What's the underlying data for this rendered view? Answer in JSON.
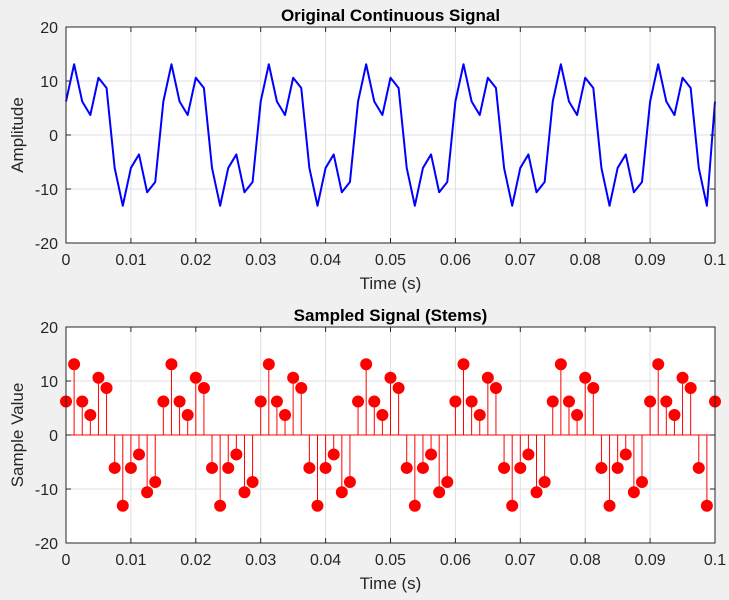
{
  "chart_data": [
    {
      "type": "line",
      "title": "Original Continuous Signal",
      "xlabel": "Time (s)",
      "ylabel": "Amplitude",
      "xlim": [
        0,
        0.1
      ],
      "ylim": [
        -20,
        20
      ],
      "xticks": [
        0,
        0.01,
        0.02,
        0.03,
        0.04,
        0.05,
        0.06,
        0.07,
        0.08,
        0.09,
        0.1
      ],
      "xtick_labels": [
        "0",
        "0.01",
        "0.02",
        "0.03",
        "0.04",
        "0.05",
        "0.06",
        "0.07",
        "0.08",
        "0.09",
        "0.1"
      ],
      "yticks": [
        -20,
        -10,
        0,
        10,
        20
      ],
      "ytick_labels": [
        "-20",
        "-10",
        "0",
        "10",
        "20"
      ],
      "grid": true,
      "color": "#0000ff",
      "series": [
        {
          "x": [
            0,
            0.00125,
            0.0025,
            0.00375,
            0.005,
            0.00625,
            0.0075,
            0.00875,
            0.01,
            0.01125,
            0.0125,
            0.01375,
            0.015,
            0.01625,
            0.0175,
            0.01875,
            0.02,
            0.02125,
            0.0225,
            0.02375,
            0.025,
            0.02625,
            0.0275,
            0.02875,
            0.03,
            0.03125,
            0.0325,
            0.03375,
            0.035,
            0.03625,
            0.0375,
            0.03875,
            0.04,
            0.04125,
            0.0425,
            0.04375,
            0.045,
            0.04625,
            0.0475,
            0.04875,
            0.05,
            0.05125,
            0.0525,
            0.05375,
            0.055,
            0.05625,
            0.0575,
            0.05875,
            0.06,
            0.06125,
            0.0625,
            0.06375,
            0.065,
            0.06625,
            0.0675,
            0.06875,
            0.07,
            0.07125,
            0.0725,
            0.07375,
            0.075,
            0.07625,
            0.0775,
            0.07875,
            0.08,
            0.08125,
            0.0825,
            0.08375,
            0.085,
            0.08625,
            0.0875,
            0.08875,
            0.09,
            0.09125,
            0.0925,
            0.09375,
            0.095,
            0.09625,
            0.0975,
            0.09875,
            0.1
          ],
          "y": [
            6.2,
            13.1,
            6.2,
            3.7,
            10.6,
            8.7,
            -6.1,
            -13.1,
            -6.1,
            -3.6,
            -10.6,
            -8.7,
            6.2,
            13.1,
            6.2,
            3.7,
            10.6,
            8.7,
            -6.1,
            -13.1,
            -6.1,
            -3.6,
            -10.6,
            -8.7,
            6.2,
            13.1,
            6.2,
            3.7,
            10.6,
            8.7,
            -6.1,
            -13.1,
            -6.1,
            -3.6,
            -10.6,
            -8.7,
            6.2,
            13.1,
            6.2,
            3.7,
            10.6,
            8.7,
            -6.1,
            -13.1,
            -6.1,
            -3.6,
            -10.6,
            -8.7,
            6.2,
            13.1,
            6.2,
            3.7,
            10.6,
            8.7,
            -6.1,
            -13.1,
            -6.1,
            -3.6,
            -10.6,
            -8.7,
            6.2,
            13.1,
            6.2,
            3.7,
            10.6,
            8.7,
            -6.1,
            -13.1,
            -6.1,
            -3.6,
            -10.6,
            -8.7,
            6.2,
            13.1,
            6.2,
            3.7,
            10.6,
            8.7,
            -6.1,
            -13.1,
            6.2
          ]
        }
      ]
    },
    {
      "type": "stem",
      "title": "Sampled Signal (Stems)",
      "xlabel": "Time (s)",
      "ylabel": "Sample Value",
      "xlim": [
        0,
        0.1
      ],
      "ylim": [
        -20,
        20
      ],
      "xticks": [
        0,
        0.01,
        0.02,
        0.03,
        0.04,
        0.05,
        0.06,
        0.07,
        0.08,
        0.09,
        0.1
      ],
      "xtick_labels": [
        "0",
        "0.01",
        "0.02",
        "0.03",
        "0.04",
        "0.05",
        "0.06",
        "0.07",
        "0.08",
        "0.09",
        "0.1"
      ],
      "yticks": [
        -20,
        -10,
        0,
        10,
        20
      ],
      "ytick_labels": [
        "-20",
        "-10",
        "0",
        "10",
        "20"
      ],
      "grid": true,
      "color": "#ff0000",
      "series": [
        {
          "x": [
            0,
            0.00125,
            0.0025,
            0.00375,
            0.005,
            0.00625,
            0.0075,
            0.00875,
            0.01,
            0.01125,
            0.0125,
            0.01375,
            0.015,
            0.01625,
            0.0175,
            0.01875,
            0.02,
            0.02125,
            0.0225,
            0.02375,
            0.025,
            0.02625,
            0.0275,
            0.02875,
            0.03,
            0.03125,
            0.0325,
            0.03375,
            0.035,
            0.03625,
            0.0375,
            0.03875,
            0.04,
            0.04125,
            0.0425,
            0.04375,
            0.045,
            0.04625,
            0.0475,
            0.04875,
            0.05,
            0.05125,
            0.0525,
            0.05375,
            0.055,
            0.05625,
            0.0575,
            0.05875,
            0.06,
            0.06125,
            0.0625,
            0.06375,
            0.065,
            0.06625,
            0.0675,
            0.06875,
            0.07,
            0.07125,
            0.0725,
            0.07375,
            0.075,
            0.07625,
            0.0775,
            0.07875,
            0.08,
            0.08125,
            0.0825,
            0.08375,
            0.085,
            0.08625,
            0.0875,
            0.08875,
            0.09,
            0.09125,
            0.0925,
            0.09375,
            0.095,
            0.09625,
            0.0975,
            0.09875,
            0.1
          ],
          "y": [
            6.2,
            13.1,
            6.2,
            3.7,
            10.6,
            8.7,
            -6.1,
            -13.1,
            -6.1,
            -3.6,
            -10.6,
            -8.7,
            6.2,
            13.1,
            6.2,
            3.7,
            10.6,
            8.7,
            -6.1,
            -13.1,
            -6.1,
            -3.6,
            -10.6,
            -8.7,
            6.2,
            13.1,
            6.2,
            3.7,
            10.6,
            8.7,
            -6.1,
            -13.1,
            -6.1,
            -3.6,
            -10.6,
            -8.7,
            6.2,
            13.1,
            6.2,
            3.7,
            10.6,
            8.7,
            -6.1,
            -13.1,
            -6.1,
            -3.6,
            -10.6,
            -8.7,
            6.2,
            13.1,
            6.2,
            3.7,
            10.6,
            8.7,
            -6.1,
            -13.1,
            -6.1,
            -3.6,
            -10.6,
            -8.7,
            6.2,
            13.1,
            6.2,
            3.7,
            10.6,
            8.7,
            -6.1,
            -13.1,
            -6.1,
            -3.6,
            -10.6,
            -8.7,
            6.2,
            13.1,
            6.2,
            3.7,
            10.6,
            8.7,
            -6.1,
            -13.1,
            6.2
          ]
        }
      ]
    }
  ]
}
